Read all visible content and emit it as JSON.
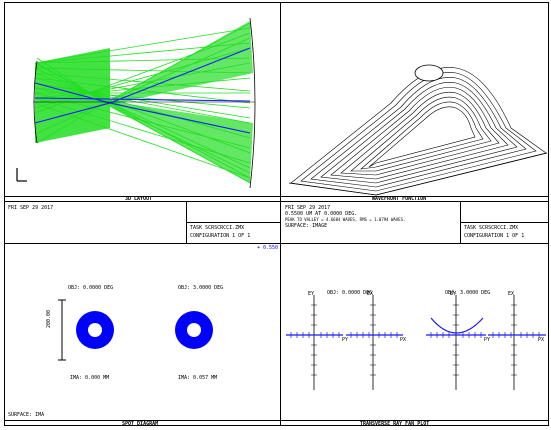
{
  "panels": {
    "layout": {
      "caption": "3D LAYOUT"
    },
    "wavefront": {
      "caption": "WAVEFRONT FUNCTION"
    },
    "spot": {
      "caption": "SPOT DIAGRAM"
    },
    "ray_fan": {
      "caption": "TRANSVERSE RAY FAN PLOT"
    }
  },
  "info_left": {
    "date": "FRI SEP 29 2017",
    "file": "TASK SCRSCRCCI.ZMX",
    "config": "CONFIGURATION 1 OF 1"
  },
  "info_right": {
    "line1": "FRI SEP 29 2017",
    "line2": "0.5500 UM AT 0.0000 DEG.",
    "line3": "PEAK TO VALLEY = 4.6684 WAVES, RMS = 1.0794 WAVES.",
    "line4": "SURFACE: IMAGE",
    "file": "TASK SCRSCRCCI.ZMX",
    "config": "CONFIGURATION 1 OF 1"
  },
  "spot": {
    "top_left_field": "OBJ: 0.0000 DEG",
    "top_right_field": "OBJ: 3.0000 DEG",
    "bottom_left_image": "IMA: 0.000 MM",
    "bottom_right_image": "IMA: 0.057 MM",
    "scale_label": "200.00",
    "surface_note": "SURFACE: IMA",
    "corner_link": "+ 0.550"
  },
  "ray_fan": {
    "field_top_left": "OBJ: 0.0000 DEG",
    "field_top_right": "OBJ: 3.0000 DEG",
    "axis_ey": "EY",
    "axis_ex": "EX",
    "axis_py": "PY",
    "axis_px": "PX"
  },
  "colors": {
    "rays_green": "#22dd22",
    "rays_blue": "#1a1aff",
    "spot_blue": "#0000ff",
    "fan_blue": "#1a1aee"
  }
}
